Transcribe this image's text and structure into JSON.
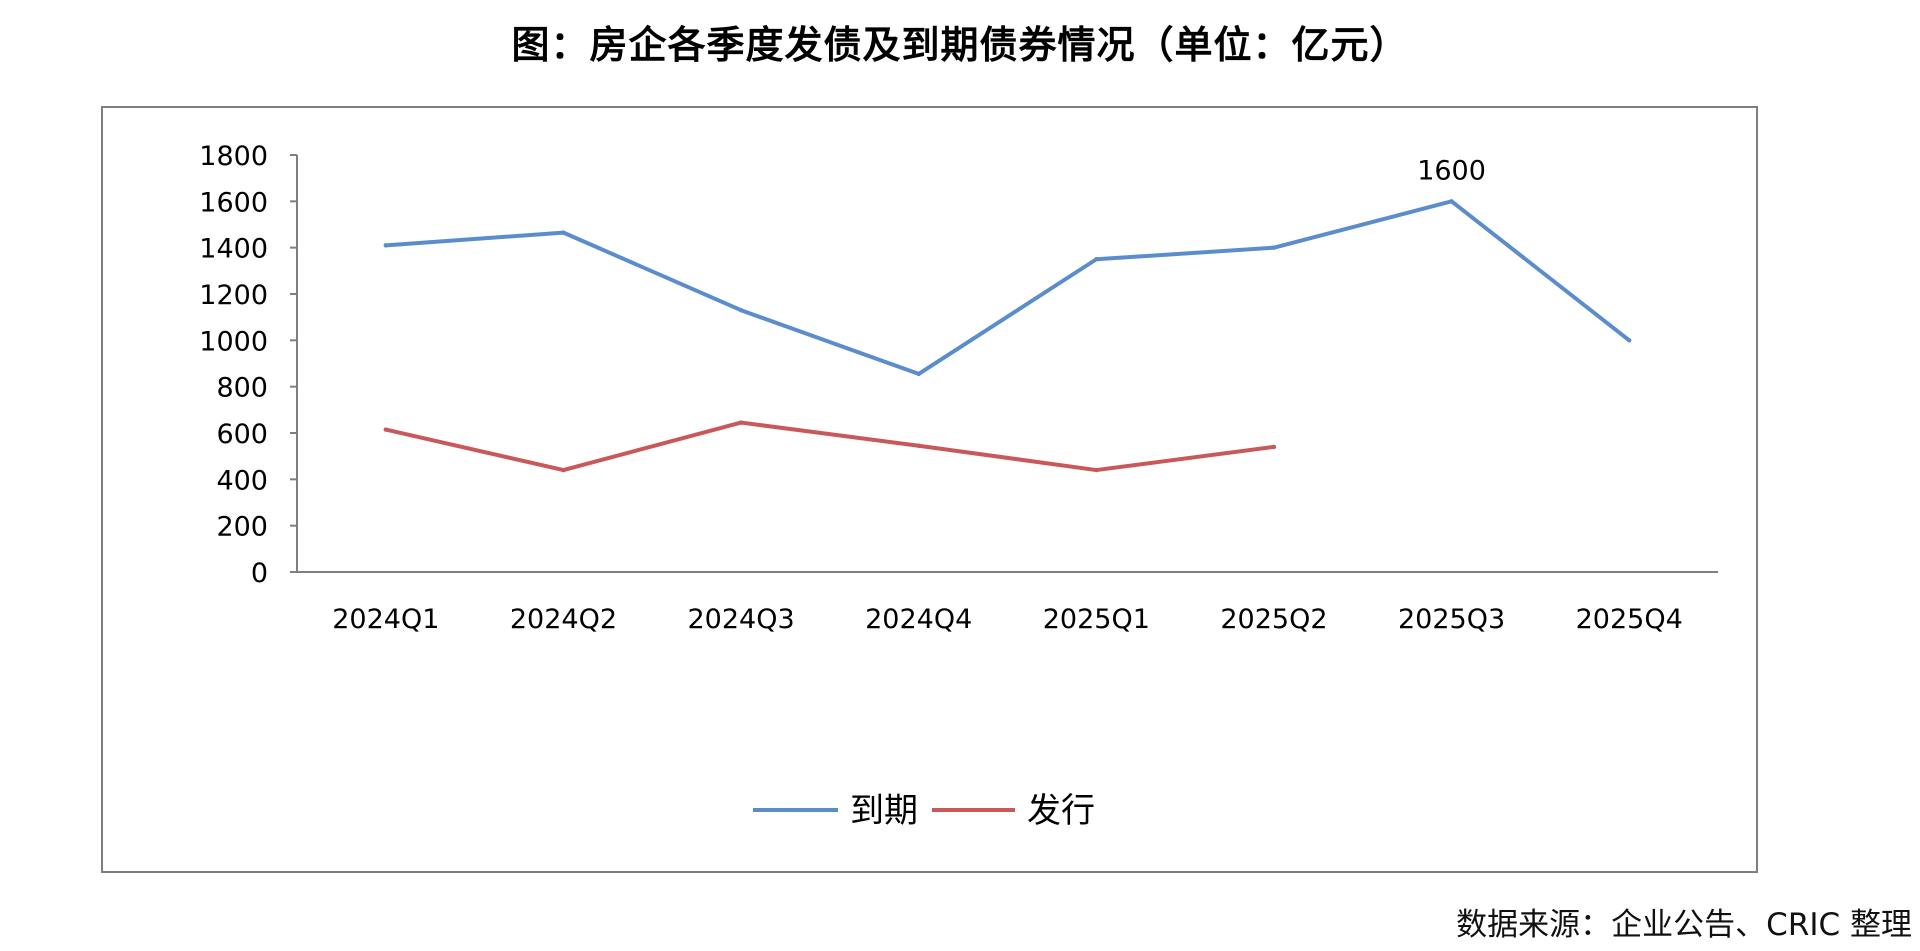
{
  "title": "图：房企各季度发债及到期债券情况（单位：亿元）",
  "source": "数据来源：企业公告、CRIC 整理",
  "colors": {
    "maturity": "#5B8DCD",
    "issuance": "#C9585A",
    "axis": "#7f7f7f",
    "frame": "#7f7f7f"
  },
  "chart_data": {
    "type": "line",
    "categories": [
      "2024Q1",
      "2024Q2",
      "2024Q3",
      "2024Q4",
      "2025Q1",
      "2025Q2",
      "2025Q3",
      "2025Q4"
    ],
    "ylim": [
      0,
      1800
    ],
    "yticks": [
      0,
      200,
      400,
      600,
      800,
      1000,
      1200,
      1400,
      1600,
      1800
    ],
    "grid": false,
    "legend_position": "bottom",
    "series": [
      {
        "name": "到期",
        "color": "#5B8DCD",
        "values": [
          1410,
          1465,
          1130,
          855,
          1350,
          1400,
          1600,
          1000
        ]
      },
      {
        "name": "发行",
        "color": "#C9585A",
        "values": [
          615,
          440,
          645,
          545,
          440,
          540,
          null,
          null
        ]
      }
    ],
    "annotations": [
      {
        "series": 0,
        "index": 6,
        "text": "1600"
      }
    ]
  }
}
